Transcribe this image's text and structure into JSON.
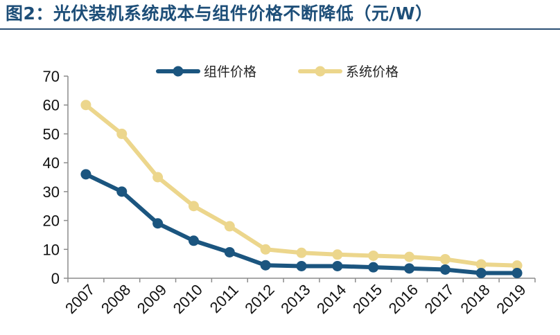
{
  "page": {
    "title": "图2：光伏装机系统成本与组件价格不断降低（元/W）"
  },
  "chart_data": {
    "type": "line",
    "title": "图2：光伏装机系统成本与组件价格不断降低（元/W）",
    "xlabel": "",
    "ylabel": "",
    "categories": [
      "2007",
      "2008",
      "2009",
      "2010",
      "2011",
      "2012",
      "2013",
      "2014",
      "2015",
      "2016",
      "2017",
      "2018",
      "2019"
    ],
    "yticks": [
      "0",
      "10",
      "20",
      "30",
      "40",
      "50",
      "60",
      "70"
    ],
    "ylim": [
      0,
      70
    ],
    "grid": false,
    "legend_position": "top",
    "series": [
      {
        "name": "组件价格",
        "color": "#1b557f",
        "values": [
          36,
          30,
          19,
          13,
          9,
          4.5,
          4.2,
          4.2,
          3.8,
          3.4,
          3.0,
          1.8,
          1.8
        ]
      },
      {
        "name": "系统价格",
        "color": "#ecd68c",
        "values": [
          60,
          50,
          35,
          25,
          18,
          10,
          8.8,
          8.2,
          7.8,
          7.4,
          6.6,
          4.8,
          4.4
        ]
      }
    ]
  }
}
